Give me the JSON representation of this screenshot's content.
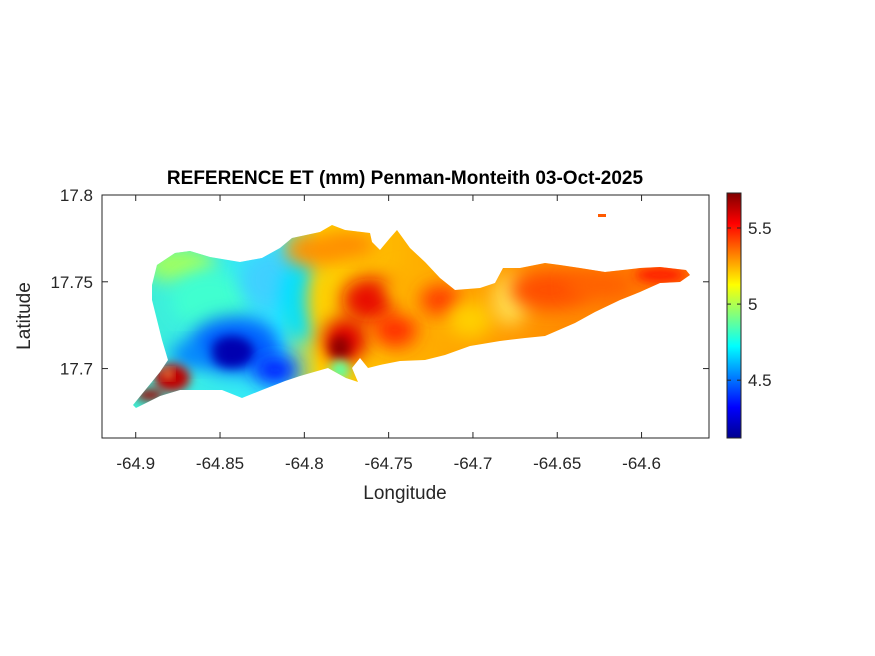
{
  "chart_data": {
    "type": "heatmap",
    "title": "REFERENCE ET (mm) Penman-Monteith 03-Oct-2025",
    "xlabel": "Longitude",
    "ylabel": "Latitude",
    "xlim": [
      -64.92,
      -64.56
    ],
    "ylim": [
      17.66,
      17.8
    ],
    "xticks": [
      -64.9,
      -64.85,
      -64.8,
      -64.75,
      -64.7,
      -64.65,
      -64.6
    ],
    "xtick_labels": [
      "-64.9",
      "-64.85",
      "-64.8",
      "-64.75",
      "-64.7",
      "-64.65",
      "-64.6"
    ],
    "yticks": [
      17.7,
      17.75,
      17.8
    ],
    "ytick_labels": [
      "17.7",
      "17.75",
      "17.8"
    ],
    "colormap": "jet",
    "colorbar": {
      "limits": [
        4.12,
        5.73
      ],
      "ticks": [
        4.5,
        5,
        5.5
      ],
      "tick_labels": [
        "4.5",
        "5",
        "5.5"
      ],
      "location": "right"
    },
    "grid": false,
    "regions": [
      {
        "area": "west (lon -64.9 to -64.82)",
        "approx_value": 4.7
      },
      {
        "area": "southwest low near (-64.845, 17.705)",
        "approx_value": 4.15
      },
      {
        "area": "far southwest tip near (-64.88, 17.695)",
        "approx_value": 5.73
      },
      {
        "area": "central high near (-64.77, 17.72)",
        "approx_value": 5.6
      },
      {
        "area": "east (lon -64.72 to -64.57)",
        "approx_value": 5.35
      }
    ]
  }
}
